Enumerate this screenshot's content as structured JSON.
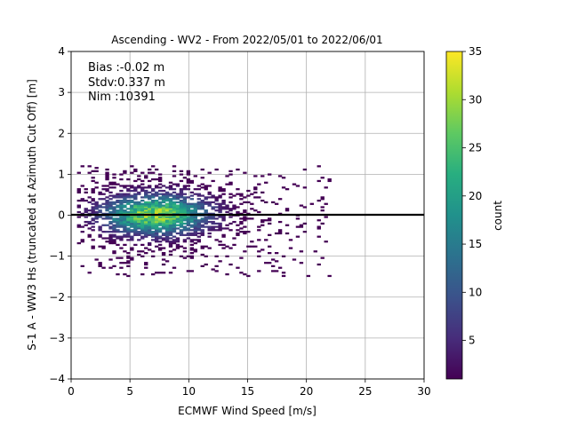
{
  "chart_data": {
    "type": "heatmap",
    "title": "Ascending - WV2 - From 2022/05/01 to 2022/06/01",
    "xlabel": "ECMWF Wind Speed [m/s]",
    "ylabel": "S-1 A - WW3 Hs (truncated at Azimuth Cut Off) [m]",
    "xlim": [
      0,
      30
    ],
    "ylim": [
      -4,
      4
    ],
    "xticks": [
      "0",
      "5",
      "10",
      "15",
      "20",
      "25",
      "30"
    ],
    "yticks": [
      "4",
      "3",
      "2",
      "1",
      "0",
      "−1",
      "−2",
      "−3",
      "−4"
    ],
    "grid": true,
    "reference_line_y": 0,
    "stats_text": [
      "Bias :-0.02 m",
      "Stdv:0.337 m",
      "Nim :10391"
    ],
    "colorbar": {
      "label": "count",
      "min": 1,
      "max": 35,
      "ticks": [
        "35",
        "30",
        "25",
        "20",
        "15",
        "10",
        "5"
      ],
      "colormap": "viridis"
    },
    "density": {
      "peak_x": 7.0,
      "peak_y": 0.0,
      "peak_count": 30,
      "x_range_main": [
        0.5,
        22
      ],
      "y_range_main": [
        -1.5,
        1.2
      ]
    }
  },
  "colors": {
    "zero_line": "#000000",
    "grid": "#b0b0b0",
    "low_count": "#440154",
    "high_count": "#fde725"
  }
}
